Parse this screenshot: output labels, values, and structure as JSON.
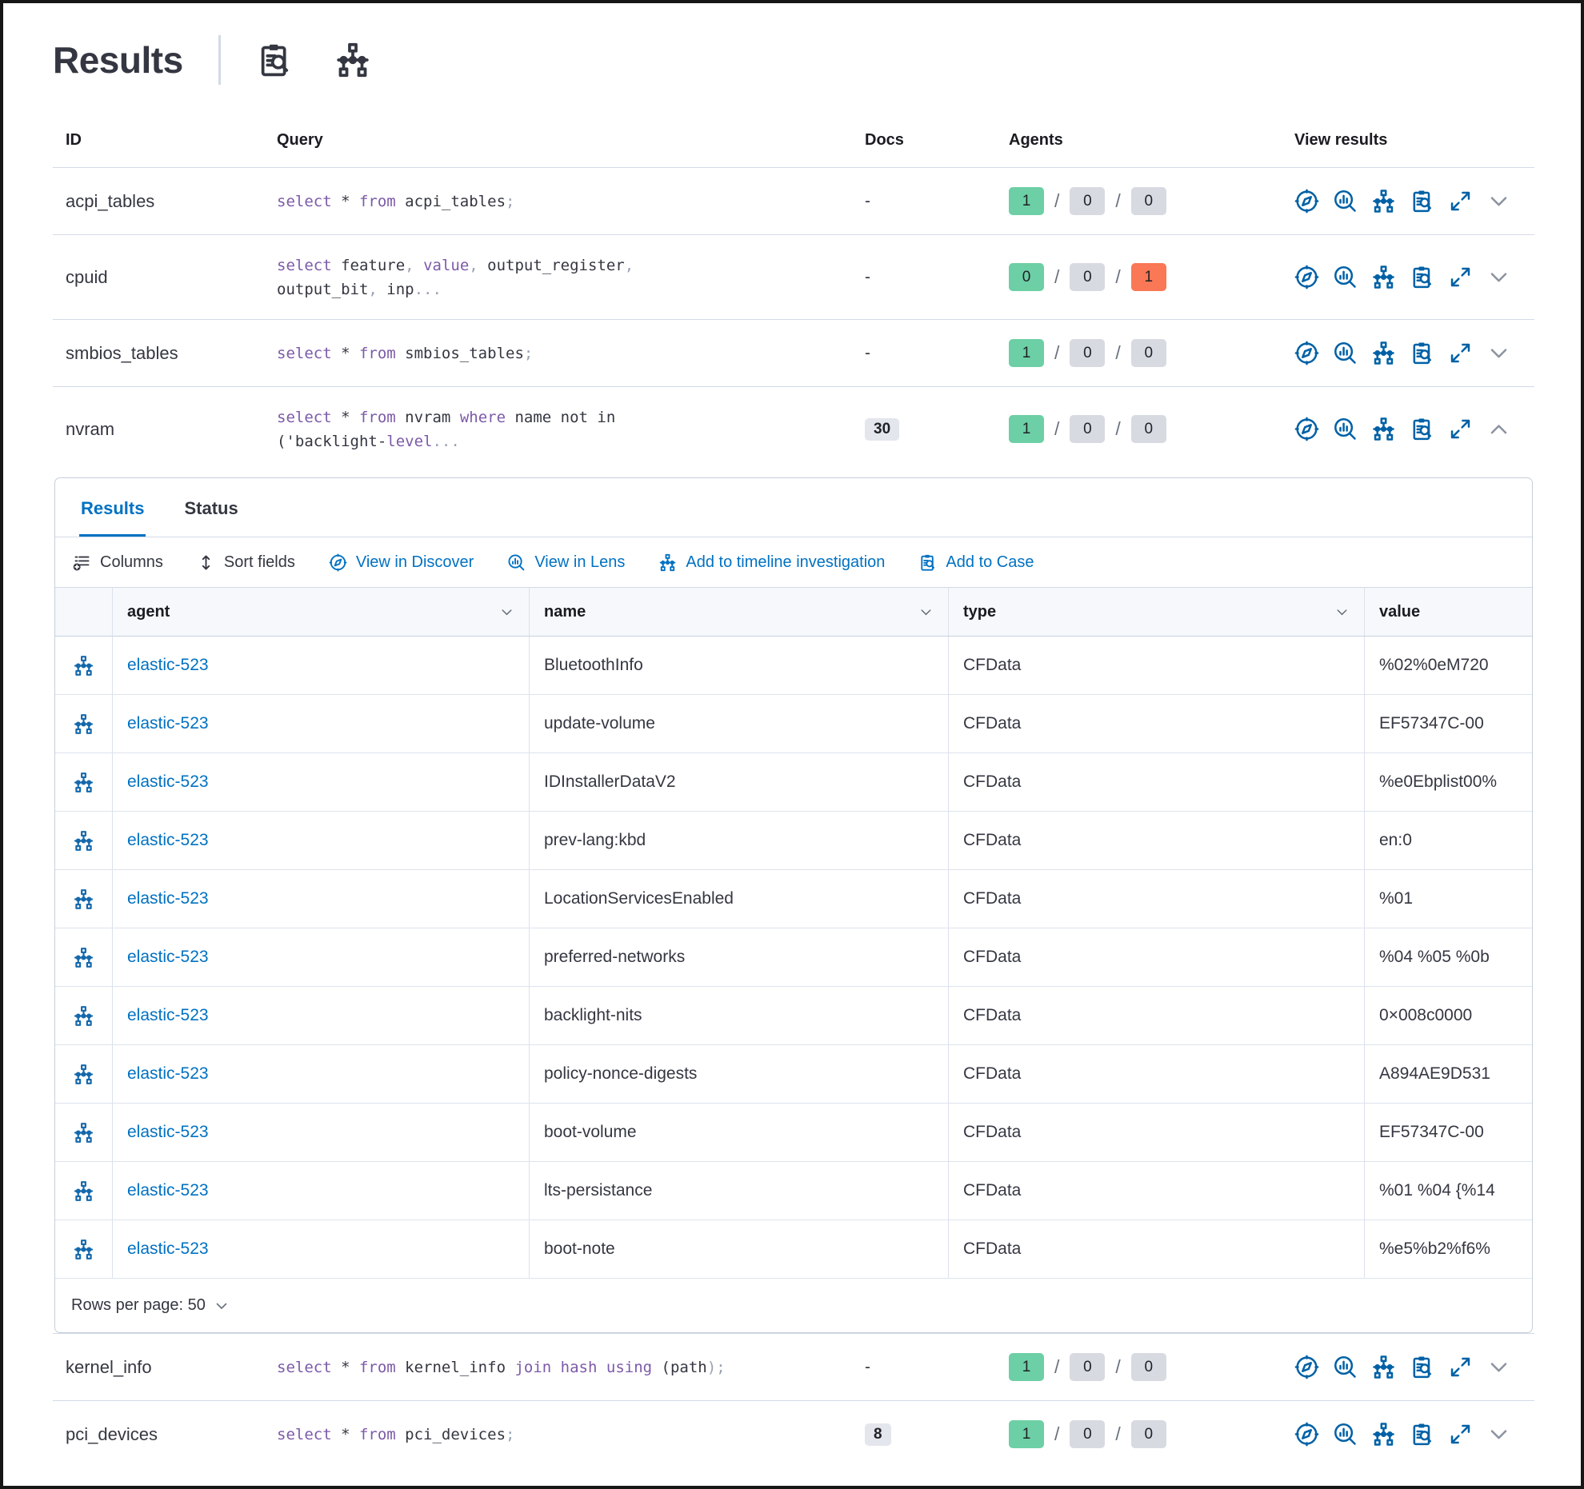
{
  "title": "Results",
  "header": {
    "icons": [
      "inspect-icon",
      "timeline-icon"
    ]
  },
  "query_table": {
    "columns": [
      "ID",
      "Query",
      "Docs",
      "Agents",
      "View results"
    ],
    "view_icons": [
      "discover-icon",
      "lens-icon",
      "timeline-icon",
      "case-icon",
      "expand-icon"
    ],
    "rows": [
      {
        "id": "acpi_tables",
        "query_lines": [
          [
            [
              "k",
              "select"
            ],
            [
              "t",
              " * "
            ],
            [
              "k",
              "from"
            ],
            [
              "t",
              " acpi_tables"
            ],
            [
              "p",
              ";"
            ]
          ]
        ],
        "docs": "-",
        "docs_is_badge": false,
        "agents": [
          {
            "v": "1",
            "s": "green"
          },
          {
            "v": "0",
            "s": "gray"
          },
          {
            "v": "0",
            "s": "gray"
          }
        ],
        "chevron": "down",
        "expanded": false
      },
      {
        "id": "cpuid",
        "query_lines": [
          [
            [
              "k",
              "select"
            ],
            [
              "t",
              " feature"
            ],
            [
              "p",
              ","
            ],
            [
              "t",
              " "
            ],
            [
              "k",
              "value"
            ],
            [
              "p",
              ","
            ],
            [
              "t",
              " output_register"
            ],
            [
              "p",
              ","
            ]
          ],
          [
            [
              "t",
              "output_bit"
            ],
            [
              "p",
              ","
            ],
            [
              "t",
              " inp"
            ],
            [
              "p",
              "..."
            ]
          ]
        ],
        "docs": "-",
        "docs_is_badge": false,
        "agents": [
          {
            "v": "0",
            "s": "green"
          },
          {
            "v": "0",
            "s": "gray"
          },
          {
            "v": "1",
            "s": "red"
          }
        ],
        "chevron": "down",
        "expanded": false
      },
      {
        "id": "smbios_tables",
        "query_lines": [
          [
            [
              "k",
              "select"
            ],
            [
              "t",
              " * "
            ],
            [
              "k",
              "from"
            ],
            [
              "t",
              " smbios_tables"
            ],
            [
              "p",
              ";"
            ]
          ]
        ],
        "docs": "-",
        "docs_is_badge": false,
        "agents": [
          {
            "v": "1",
            "s": "green"
          },
          {
            "v": "0",
            "s": "gray"
          },
          {
            "v": "0",
            "s": "gray"
          }
        ],
        "chevron": "down",
        "expanded": false
      },
      {
        "id": "nvram",
        "query_lines": [
          [
            [
              "k",
              "select"
            ],
            [
              "t",
              " * "
            ],
            [
              "k",
              "from"
            ],
            [
              "t",
              " nvram "
            ],
            [
              "k",
              "where"
            ],
            [
              "t",
              " name not in"
            ]
          ],
          [
            [
              "t",
              "('backlight-"
            ],
            [
              "k",
              "level"
            ],
            [
              "p",
              "..."
            ]
          ]
        ],
        "docs": "30",
        "docs_is_badge": true,
        "agents": [
          {
            "v": "1",
            "s": "green"
          },
          {
            "v": "0",
            "s": "gray"
          },
          {
            "v": "0",
            "s": "gray"
          }
        ],
        "chevron": "up",
        "expanded": true
      },
      {
        "id": "kernel_info",
        "query_lines": [
          [
            [
              "k",
              "select"
            ],
            [
              "t",
              " * "
            ],
            [
              "k",
              "from"
            ],
            [
              "t",
              " kernel_info "
            ],
            [
              "k",
              "join"
            ],
            [
              "t",
              " "
            ],
            [
              "k",
              "hash"
            ],
            [
              "t",
              " "
            ],
            [
              "k",
              "using"
            ],
            [
              "t",
              " ("
            ],
            [
              "t",
              "path"
            ],
            [
              "p",
              ");"
            ]
          ]
        ],
        "docs": "-",
        "docs_is_badge": false,
        "agents": [
          {
            "v": "1",
            "s": "green"
          },
          {
            "v": "0",
            "s": "gray"
          },
          {
            "v": "0",
            "s": "gray"
          }
        ],
        "chevron": "down",
        "expanded": false
      },
      {
        "id": "pci_devices",
        "query_lines": [
          [
            [
              "k",
              "select"
            ],
            [
              "t",
              " * "
            ],
            [
              "k",
              "from"
            ],
            [
              "t",
              " pci_devices"
            ],
            [
              "p",
              ";"
            ]
          ]
        ],
        "docs": "8",
        "docs_is_badge": true,
        "agents": [
          {
            "v": "1",
            "s": "green"
          },
          {
            "v": "0",
            "s": "gray"
          },
          {
            "v": "0",
            "s": "gray"
          }
        ],
        "chevron": "down",
        "expanded": false
      }
    ]
  },
  "panel": {
    "tabs": [
      {
        "label": "Results",
        "active": true
      },
      {
        "label": "Status",
        "active": false
      }
    ],
    "toolbar": [
      {
        "label": "Columns",
        "icon": "columns-icon",
        "style": "dark"
      },
      {
        "label": "Sort fields",
        "icon": "sort-icon",
        "style": "dark"
      },
      {
        "label": "View in Discover",
        "icon": "discover-icon",
        "style": "blue"
      },
      {
        "label": "View in Lens",
        "icon": "lens-icon",
        "style": "blue"
      },
      {
        "label": "Add to timeline investigation",
        "icon": "timeline-icon",
        "style": "blue"
      },
      {
        "label": "Add to Case",
        "icon": "case-icon",
        "style": "blue"
      }
    ],
    "grid": {
      "columns": [
        {
          "label": "",
          "key": "rowicon",
          "sortable": false
        },
        {
          "label": "agent",
          "key": "agent",
          "sortable": true
        },
        {
          "label": "name",
          "key": "name",
          "sortable": true
        },
        {
          "label": "type",
          "key": "type",
          "sortable": true
        },
        {
          "label": "value",
          "key": "value",
          "sortable": false
        }
      ],
      "row_icon": "timeline-icon",
      "rows": [
        {
          "agent": "elastic-523",
          "name": "BluetoothInfo",
          "type": "CFData",
          "value": "%02%0eM720"
        },
        {
          "agent": "elastic-523",
          "name": "update-volume",
          "type": "CFData",
          "value": "EF57347C-00"
        },
        {
          "agent": "elastic-523",
          "name": "IDInstallerDataV2",
          "type": "CFData",
          "value": "%e0Ebplist00%"
        },
        {
          "agent": "elastic-523",
          "name": "prev-lang:kbd",
          "type": "CFData",
          "value": "en:0"
        },
        {
          "agent": "elastic-523",
          "name": "LocationServicesEnabled",
          "type": "CFData",
          "value": "%01"
        },
        {
          "agent": "elastic-523",
          "name": "preferred-networks",
          "type": "CFData",
          "value": "%04 %05 %0b"
        },
        {
          "agent": "elastic-523",
          "name": "backlight-nits",
          "type": "CFData",
          "value": "0×008c0000"
        },
        {
          "agent": "elastic-523",
          "name": "policy-nonce-digests",
          "type": "CFData",
          "value": "A894AE9D531"
        },
        {
          "agent": "elastic-523",
          "name": "boot-volume",
          "type": "CFData",
          "value": "EF57347C-00"
        },
        {
          "agent": "elastic-523",
          "name": "lts-persistance",
          "type": "CFData",
          "value": "%01 %04 {%14"
        },
        {
          "agent": "elastic-523",
          "name": "boot-note",
          "type": "CFData",
          "value": "%e5%b2%f6%"
        }
      ]
    },
    "footer": {
      "rows_per_page": "Rows per page: 50"
    }
  },
  "colors": {
    "link": "#0071C2",
    "icon_blue": "#0061A6",
    "badge_green": "#6DCFA5",
    "badge_gray": "#D8DAE2",
    "badge_red": "#FA7855",
    "keyword": "#7C5AA8",
    "punctuation": "#98A2B3"
  }
}
